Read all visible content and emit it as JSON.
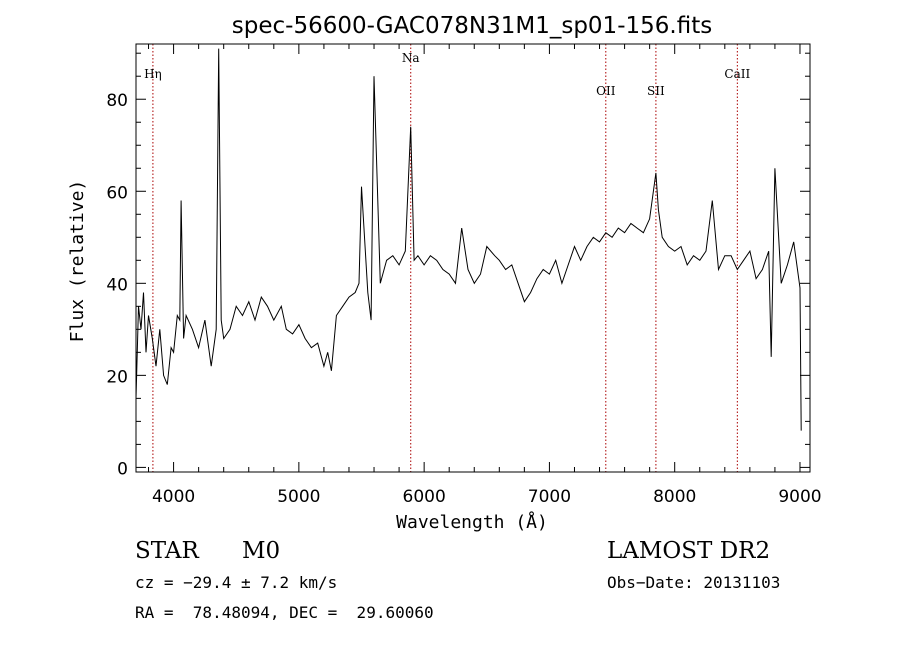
{
  "chart_data": {
    "type": "line",
    "title": "spec-56600-GAC078N31M1_sp01-156.fits",
    "xlabel": "Wavelength (Å)",
    "ylabel": "Flux (relative)",
    "xlim": [
      3700,
      9080
    ],
    "ylim": [
      -1,
      92
    ],
    "x_ticks": [
      4000,
      5000,
      6000,
      7000,
      8000,
      9000
    ],
    "y_ticks": [
      0,
      20,
      40,
      60,
      80
    ],
    "grid": false,
    "line_color": "#000000",
    "marker_color": "#aa0000",
    "lines": [
      {
        "label": "Hη",
        "wavelength": 3835
      },
      {
        "label": "Na",
        "wavelength": 5893
      },
      {
        "label": "OII",
        "wavelength": 7450
      },
      {
        "label": "SII",
        "wavelength": 7850
      },
      {
        "label": "CaII",
        "wavelength": 8500
      }
    ],
    "series": [
      {
        "x": [
          3700,
          3720,
          3740,
          3760,
          3780,
          3800,
          3830,
          3860,
          3890,
          3920,
          3950,
          3980,
          4000,
          4030,
          4050,
          4060,
          4080,
          4100,
          4150,
          4200,
          4250,
          4300,
          4340,
          4360,
          4380,
          4400,
          4450,
          4500,
          4550,
          4600,
          4650,
          4700,
          4750,
          4800,
          4860,
          4900,
          4950,
          5000,
          5050,
          5100,
          5150,
          5200,
          5230,
          5260,
          5300,
          5350,
          5400,
          5450,
          5480,
          5500,
          5550,
          5577,
          5600,
          5650,
          5700,
          5750,
          5800,
          5850,
          5893,
          5920,
          5950,
          6000,
          6050,
          6100,
          6150,
          6200,
          6250,
          6300,
          6350,
          6400,
          6450,
          6500,
          6563,
          6600,
          6650,
          6700,
          6750,
          6800,
          6850,
          6900,
          6950,
          7000,
          7050,
          7100,
          7150,
          7200,
          7250,
          7300,
          7350,
          7400,
          7450,
          7500,
          7550,
          7600,
          7650,
          7700,
          7750,
          7800,
          7850,
          7870,
          7900,
          7950,
          8000,
          8050,
          8100,
          8150,
          8200,
          8250,
          8300,
          8350,
          8400,
          8450,
          8500,
          8550,
          8600,
          8650,
          8700,
          8750,
          8770,
          8800,
          8850,
          8900,
          8950,
          9000,
          9010
        ],
        "y": [
          15,
          35,
          30,
          38,
          25,
          33,
          28,
          22,
          30,
          20,
          18,
          26,
          25,
          33,
          32,
          58,
          28,
          33,
          30,
          26,
          32,
          22,
          30,
          91,
          32,
          28,
          30,
          35,
          33,
          36,
          32,
          37,
          35,
          32,
          35,
          30,
          29,
          31,
          28,
          26,
          27,
          22,
          25,
          21,
          33,
          35,
          37,
          38,
          40,
          61,
          38,
          32,
          85,
          40,
          45,
          46,
          44,
          47,
          74,
          45,
          46,
          44,
          46,
          45,
          43,
          42,
          40,
          52,
          43,
          40,
          42,
          48,
          46,
          45,
          43,
          44,
          40,
          36,
          38,
          41,
          43,
          42,
          45,
          40,
          44,
          48,
          45,
          48,
          50,
          49,
          51,
          50,
          52,
          51,
          53,
          52,
          51,
          54,
          64,
          56,
          50,
          48,
          47,
          48,
          44,
          46,
          45,
          47,
          58,
          43,
          46,
          46,
          43,
          45,
          47,
          41,
          43,
          47,
          24,
          65,
          40,
          44,
          49,
          39,
          8
        ]
      }
    ]
  },
  "footer": {
    "obj_class": "STAR",
    "subclass": "M0",
    "survey": "LAMOST DR2",
    "redshift": "cz = −29.4 ± 7.2 km/s",
    "obs_date": "Obs−Date: 20131103",
    "coords": "RA =  78.48094, DEC =  29.60060"
  }
}
